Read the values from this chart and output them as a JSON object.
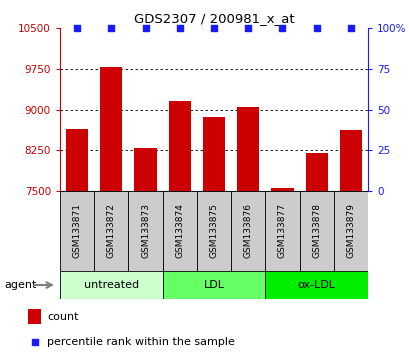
{
  "title": "GDS2307 / 200981_x_at",
  "samples": [
    "GSM133871",
    "GSM133872",
    "GSM133873",
    "GSM133874",
    "GSM133875",
    "GSM133876",
    "GSM133877",
    "GSM133878",
    "GSM133879"
  ],
  "counts": [
    8650,
    9780,
    8300,
    9150,
    8870,
    9050,
    7560,
    8200,
    8630
  ],
  "percentiles": [
    100,
    100,
    100,
    100,
    100,
    100,
    100,
    100,
    100
  ],
  "bar_color": "#cc0000",
  "percentile_color": "#1a1aff",
  "ylim_left": [
    7500,
    10500
  ],
  "ylim_right": [
    0,
    100
  ],
  "yticks_left": [
    7500,
    8250,
    9000,
    9750,
    10500
  ],
  "yticks_right": [
    0,
    25,
    50,
    75,
    100
  ],
  "yticklabels_right": [
    "0",
    "25",
    "50",
    "75",
    "100%"
  ],
  "groups": [
    {
      "label": "untreated",
      "start": 0,
      "end": 3,
      "color": "#ccffcc"
    },
    {
      "label": "LDL",
      "start": 3,
      "end": 6,
      "color": "#66ff66"
    },
    {
      "label": "ox-LDL",
      "start": 6,
      "end": 9,
      "color": "#00ee00"
    }
  ],
  "agent_label": "agent",
  "legend_count_label": "count",
  "legend_percentile_label": "percentile rank within the sample",
  "left_axis_color": "#cc0000",
  "right_axis_color": "#1a1aff",
  "sample_cell_color": "#cccccc",
  "grid_color": "#333333",
  "dotted_yticks": [
    8250,
    9000,
    9750
  ]
}
